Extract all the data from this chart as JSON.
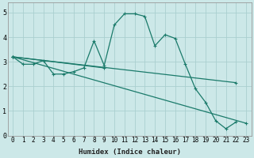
{
  "xlabel": "Humidex (Indice chaleur)",
  "background_color": "#cce8e8",
  "grid_color": "#aacfcf",
  "line_color": "#1a7a6a",
  "xlim": [
    -0.5,
    23.5
  ],
  "ylim": [
    0,
    5.4
  ],
  "xtick_labels": [
    "0",
    "1",
    "2",
    "3",
    "4",
    "5",
    "6",
    "7",
    "8",
    "9",
    "10",
    "11",
    "12",
    "13",
    "14",
    "15",
    "16",
    "17",
    "18",
    "19",
    "20",
    "21",
    "22",
    "23"
  ],
  "xtick_pos": [
    0,
    1,
    2,
    3,
    4,
    5,
    6,
    7,
    8,
    9,
    10,
    11,
    12,
    13,
    14,
    15,
    16,
    17,
    18,
    19,
    20,
    21,
    22,
    23
  ],
  "yticks": [
    0,
    1,
    2,
    3,
    4,
    5
  ],
  "lines": [
    {
      "x": [
        0,
        1,
        2,
        3,
        4,
        5,
        6,
        7,
        8,
        9,
        10,
        11,
        12,
        13,
        14,
        15,
        16,
        17,
        18,
        19,
        20,
        21,
        22
      ],
      "y": [
        3.2,
        2.9,
        2.9,
        3.05,
        2.5,
        2.5,
        2.6,
        2.75,
        3.85,
        2.85,
        4.5,
        4.95,
        4.95,
        4.85,
        3.65,
        4.1,
        3.95,
        2.9,
        1.9,
        1.35,
        0.6,
        0.28,
        0.55
      ]
    },
    {
      "x": [
        0,
        9
      ],
      "y": [
        3.2,
        2.75
      ]
    },
    {
      "x": [
        0,
        22
      ],
      "y": [
        3.2,
        2.15
      ]
    },
    {
      "x": [
        0,
        23
      ],
      "y": [
        3.2,
        0.5
      ]
    }
  ],
  "marker_lines": [
    0
  ],
  "xlabel_fontsize": 6.5,
  "tick_fontsize": 5.5
}
